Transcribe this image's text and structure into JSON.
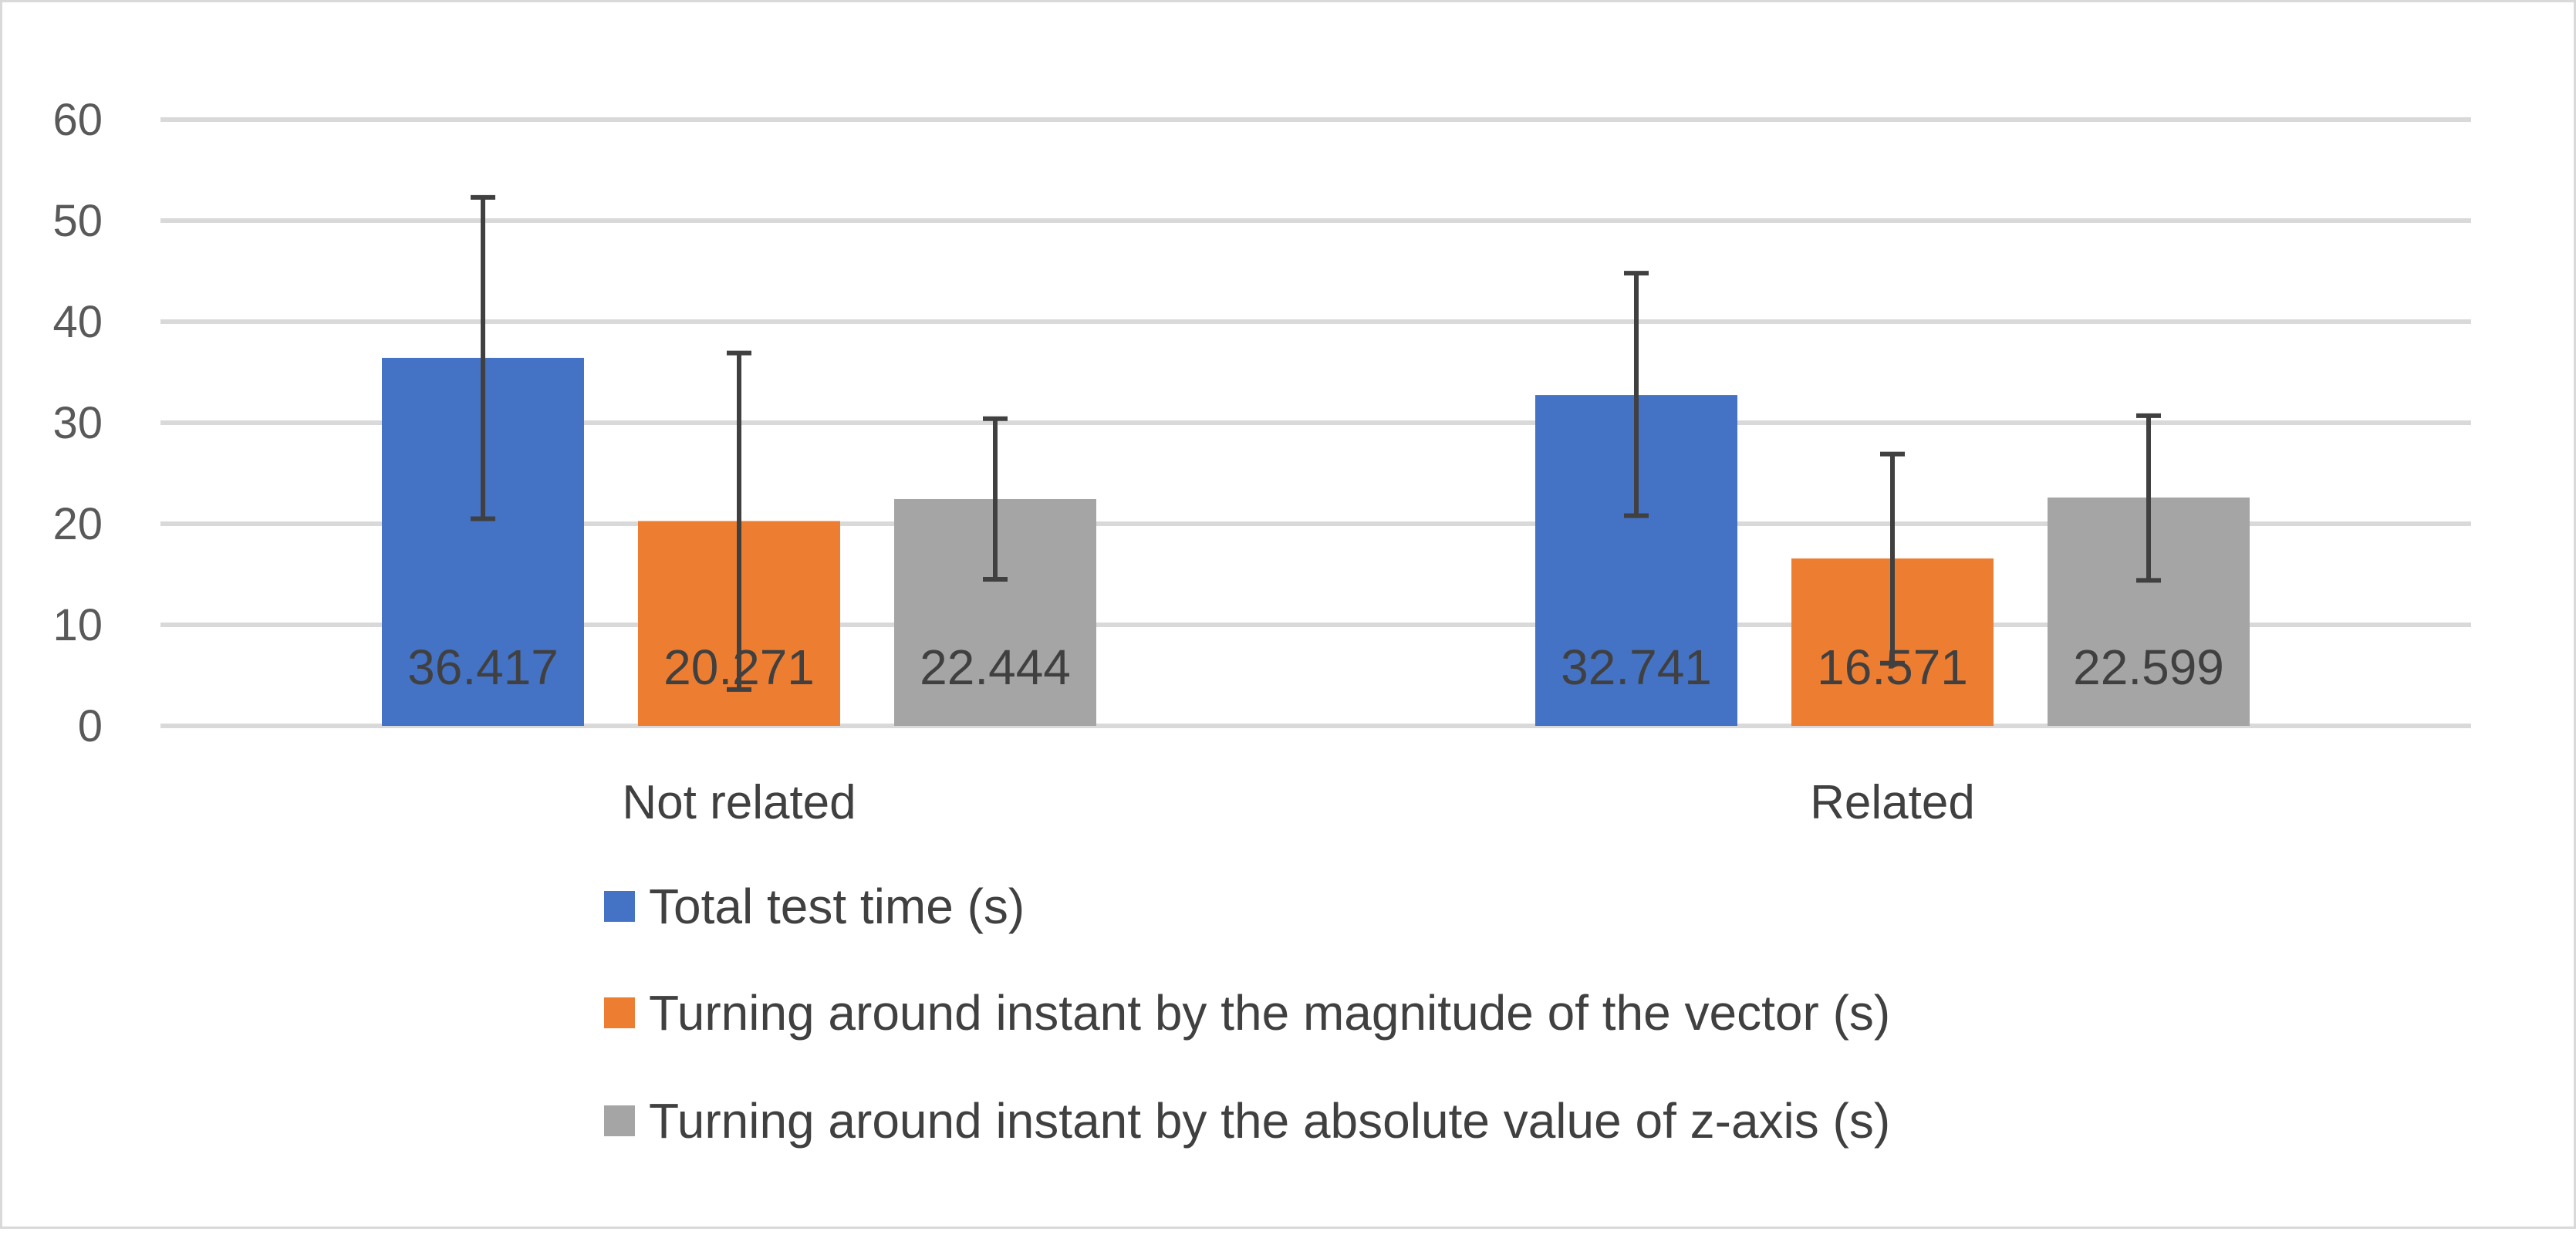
{
  "chart_data": {
    "type": "bar",
    "title": "",
    "xlabel": "",
    "ylabel": "",
    "ylim": [
      0,
      60
    ],
    "yticks": [
      0,
      10,
      20,
      30,
      40,
      50,
      60
    ],
    "grid": true,
    "legend_position": "bottom",
    "categories": [
      "Not related",
      "Related"
    ],
    "series": [
      {
        "name": "Total test time (s)",
        "color": "#4472c4",
        "values": [
          36.417,
          32.741
        ],
        "labels": [
          "36.417",
          "32.741"
        ],
        "error_low": [
          20.5,
          20.8
        ],
        "error_high": [
          52.3,
          44.8
        ]
      },
      {
        "name": "Turning around instant by the magnitude of the vector (s)",
        "color": "#ed7d31",
        "values": [
          20.271,
          16.571
        ],
        "labels": [
          "20.271",
          "16.571"
        ],
        "error_low": [
          3.6,
          6.2
        ],
        "error_high": [
          36.9,
          26.9
        ]
      },
      {
        "name": "Turning around instant by the absolute value of z-axis (s)",
        "color": "#a5a5a5",
        "values": [
          22.444,
          22.599
        ],
        "labels": [
          "22.444",
          "22.599"
        ],
        "error_low": [
          14.5,
          14.4
        ],
        "error_high": [
          30.4,
          30.7
        ]
      }
    ]
  }
}
